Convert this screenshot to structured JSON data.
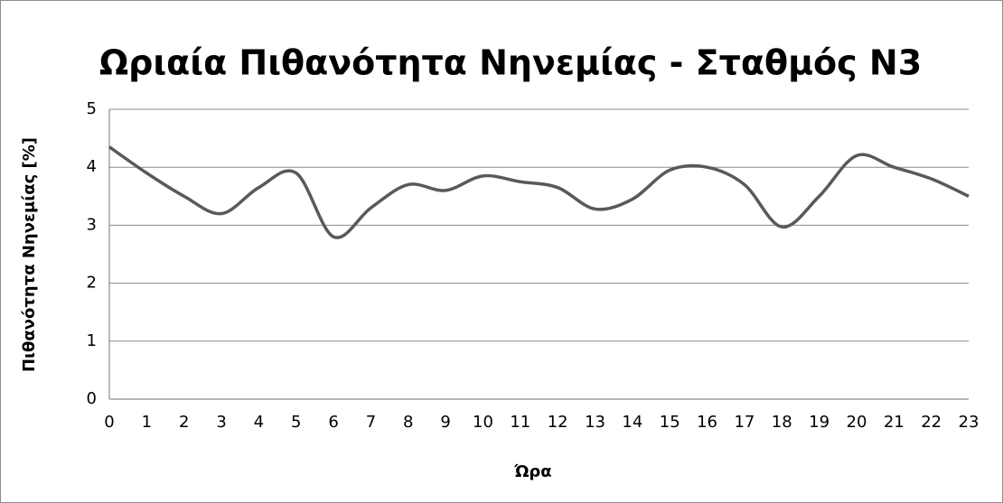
{
  "chart_data": {
    "type": "line",
    "title": "Ωριαία Πιθανότητα Νηνεμίας - Σταθμός Ν3",
    "x_label": "Ώρα",
    "y_label": "Πιθανότητα Νηνεμίας [%]",
    "x": [
      0,
      1,
      2,
      3,
      4,
      5,
      6,
      7,
      8,
      9,
      10,
      11,
      12,
      13,
      14,
      15,
      16,
      17,
      18,
      19,
      20,
      21,
      22,
      23
    ],
    "series": [
      {
        "name": "Ν3",
        "color": "#595959",
        "values": [
          4.35,
          3.9,
          3.5,
          3.2,
          3.65,
          3.9,
          2.8,
          3.3,
          3.7,
          3.6,
          3.85,
          3.75,
          3.65,
          3.28,
          3.45,
          3.95,
          4.0,
          3.7,
          2.97,
          3.5,
          4.2,
          4.0,
          3.8,
          3.5
        ]
      }
    ],
    "xlim": [
      0,
      23
    ],
    "xticks": [
      0,
      1,
      2,
      3,
      4,
      5,
      6,
      7,
      8,
      9,
      10,
      11,
      12,
      13,
      14,
      15,
      16,
      17,
      18,
      19,
      20,
      21,
      22,
      23
    ],
    "ylim": [
      0,
      5
    ],
    "yticks": [
      0,
      1,
      2,
      3,
      4,
      5
    ],
    "grid": true,
    "smooth": true
  }
}
